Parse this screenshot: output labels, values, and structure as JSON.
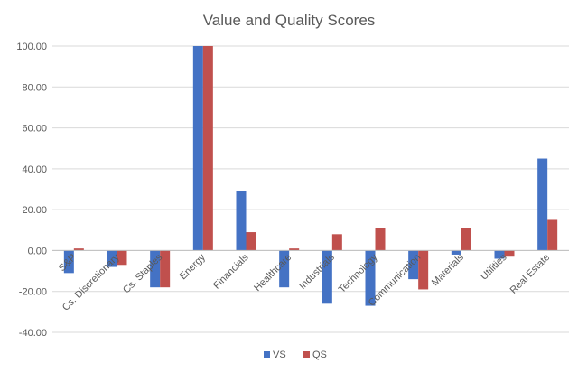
{
  "chart_data": {
    "type": "bar",
    "title": "Value and Quality Scores",
    "xlabel": "",
    "ylabel": "",
    "ylim": [
      -40,
      100
    ],
    "yticks": [
      100,
      80,
      60,
      40,
      20,
      0,
      -20,
      -40
    ],
    "ytick_labels": [
      "100.00",
      "80.00",
      "60.00",
      "40.00",
      "20.00",
      "0.00",
      "-20.00",
      "-40.00"
    ],
    "categories": [
      "S&P",
      "Cs. Discretionary",
      "Cs. Staples",
      "Energy",
      "Financials",
      "Healthcare",
      "Industrials",
      "Technology",
      "Communication",
      "Materials",
      "Utilities",
      "Real Estate"
    ],
    "series": [
      {
        "name": "VS",
        "color": "#4472c4",
        "values": [
          -11,
          -8,
          -18,
          100,
          29,
          -18,
          -26,
          -27,
          -14,
          -2,
          -4,
          45
        ]
      },
      {
        "name": "QS",
        "color": "#c0504d",
        "values": [
          1,
          -7,
          -18,
          100,
          9,
          1,
          8,
          11,
          -19,
          11,
          -3,
          15
        ]
      }
    ],
    "grid": true,
    "legend_position": "bottom-center"
  }
}
